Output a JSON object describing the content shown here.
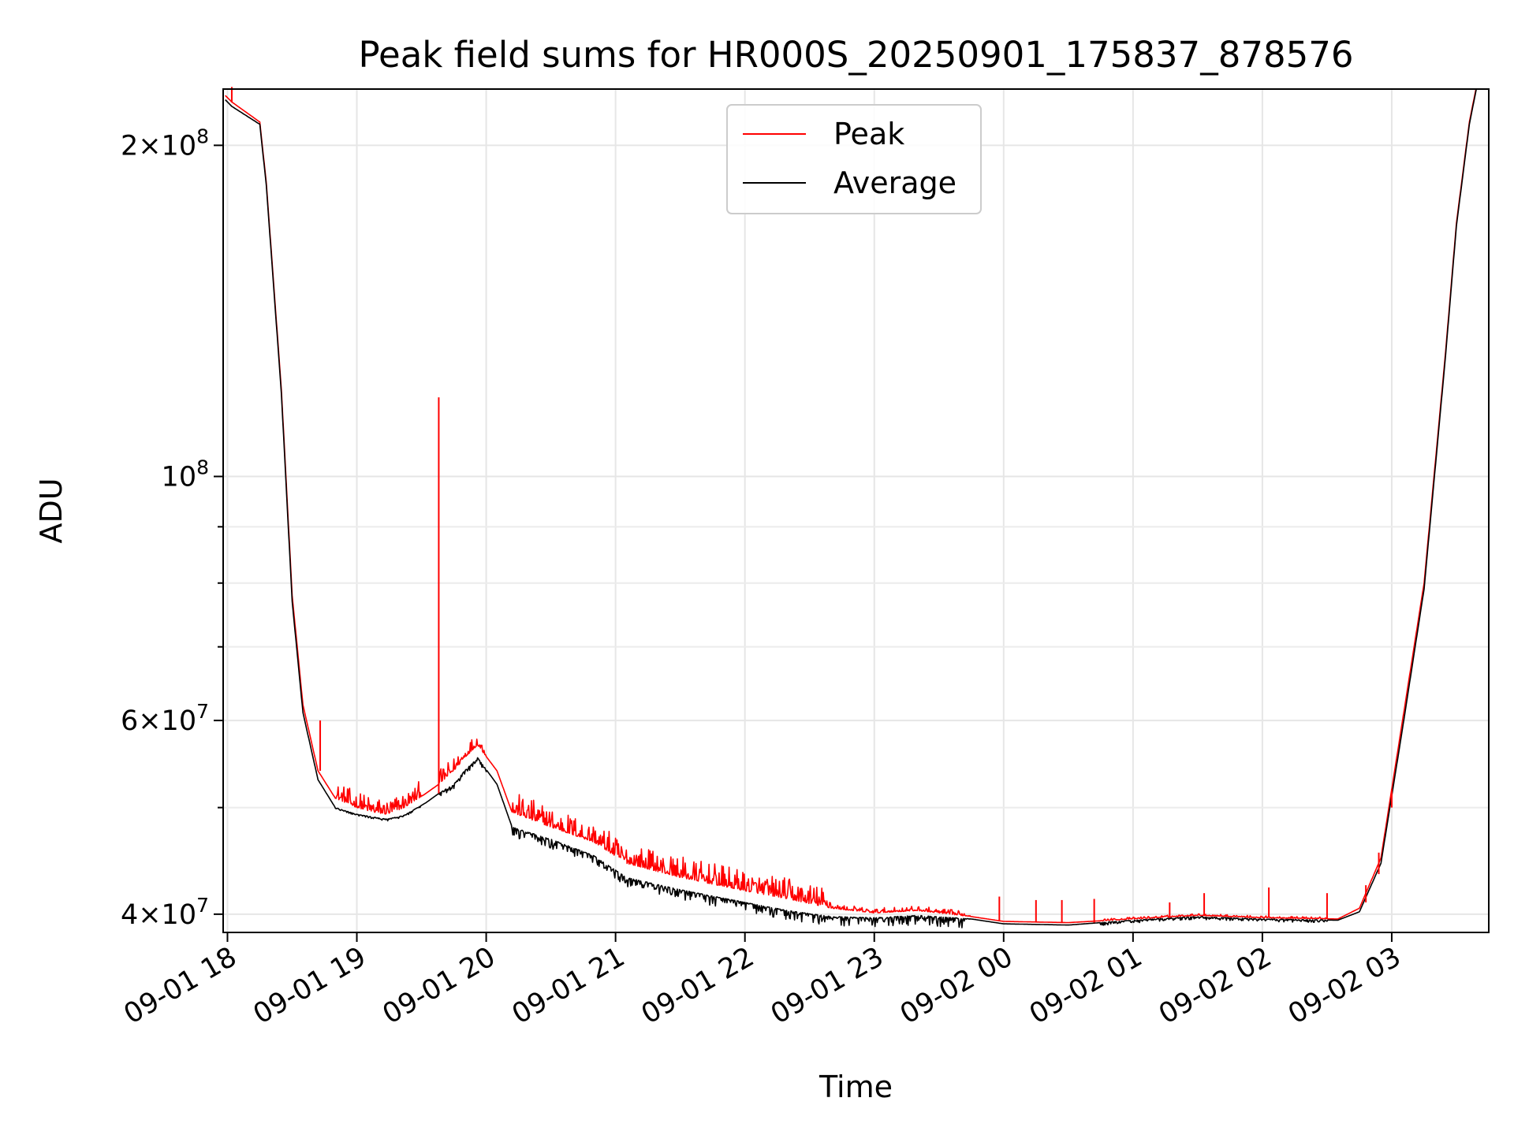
{
  "chart_data": {
    "type": "line",
    "title": "Peak field sums for HR000S_20250901_175837_878576",
    "xlabel": "Time",
    "ylabel": "ADU",
    "y_scale": "log",
    "ylim": [
      38500000,
      225000000
    ],
    "xlim": [
      "2025-09-01 17:58",
      "2025-09-02 03:45"
    ],
    "grid": true,
    "legend_position": "top-center",
    "x_tick_labels": [
      "09-01 18",
      "09-01 19",
      "09-01 20",
      "09-01 21",
      "09-01 22",
      "09-01 23",
      "09-02 00",
      "09-02 01",
      "09-02 02",
      "09-02 03"
    ],
    "x_ticks": [
      "2025-09-01 18:00",
      "2025-09-01 19:00",
      "2025-09-01 20:00",
      "2025-09-01 21:00",
      "2025-09-01 22:00",
      "2025-09-01 23:00",
      "2025-09-02 00:00",
      "2025-09-02 01:00",
      "2025-09-02 02:00",
      "2025-09-02 03:00"
    ],
    "y_major_ticks": [
      {
        "value": 40000000,
        "mantissa": "4",
        "exp": "7"
      },
      {
        "value": 60000000,
        "mantissa": "6",
        "exp": "7"
      },
      {
        "value": 100000000,
        "mantissa": "",
        "exp": "8"
      },
      {
        "value": 200000000,
        "mantissa": "2",
        "exp": "8"
      }
    ],
    "y_minor_grid": [
      50000000,
      70000000,
      80000000,
      90000000
    ],
    "colors": {
      "peak": "#ff0000",
      "average": "#000000"
    },
    "series": [
      {
        "name": "Peak",
        "color": "#ff0000",
        "x": [
          "2025-09-01 17:59",
          "2025-09-01 18:02",
          "2025-09-01 18:15",
          "2025-09-01 18:18",
          "2025-09-01 18:25",
          "2025-09-01 18:30",
          "2025-09-01 18:35",
          "2025-09-01 18:42",
          "2025-09-01 18:50",
          "2025-09-01 19:00",
          "2025-09-01 19:08",
          "2025-09-01 19:14",
          "2025-09-01 19:22",
          "2025-09-01 19:32",
          "2025-09-01 19:38",
          "2025-09-01 19:45",
          "2025-09-01 19:50",
          "2025-09-01 19:56",
          "2025-09-01 20:05",
          "2025-09-01 20:12",
          "2025-09-01 20:30",
          "2025-09-01 20:50",
          "2025-09-01 21:05",
          "2025-09-01 21:30",
          "2025-09-01 22:00",
          "2025-09-01 22:20",
          "2025-09-01 22:40",
          "2025-09-01 23:00",
          "2025-09-01 23:20",
          "2025-09-01 23:45",
          "2025-09-02 00:00",
          "2025-09-02 00:30",
          "2025-09-02 01:00",
          "2025-09-02 01:30",
          "2025-09-02 02:00",
          "2025-09-02 02:35",
          "2025-09-02 02:45",
          "2025-09-02 02:55",
          "2025-09-02 03:05",
          "2025-09-02 03:15",
          "2025-09-02 03:25",
          "2025-09-02 03:30",
          "2025-09-02 03:36",
          "2025-09-02 03:40"
        ],
        "values": [
          222000000,
          219000000,
          210000000,
          185000000,
          120000000,
          78000000,
          62000000,
          54000000,
          51000000,
          50000000,
          49500000,
          49300000,
          50000000,
          51500000,
          52500000,
          54000000,
          55500000,
          57000000,
          54000000,
          49500000,
          48000000,
          46500000,
          44500000,
          43200000,
          42000000,
          41300000,
          40500000,
          40100000,
          40300000,
          39800000,
          39400000,
          39300000,
          39600000,
          39900000,
          39700000,
          39600000,
          40500000,
          45000000,
          60000000,
          80000000,
          130000000,
          170000000,
          210000000,
          230000000
        ]
      },
      {
        "name": "Average",
        "color": "#000000",
        "x": [
          "2025-09-01 17:59",
          "2025-09-01 18:02",
          "2025-09-01 18:15",
          "2025-09-01 18:18",
          "2025-09-01 18:25",
          "2025-09-01 18:30",
          "2025-09-01 18:35",
          "2025-09-01 18:42",
          "2025-09-01 18:50",
          "2025-09-01 19:00",
          "2025-09-01 19:08",
          "2025-09-01 19:14",
          "2025-09-01 19:22",
          "2025-09-01 19:32",
          "2025-09-01 19:38",
          "2025-09-01 19:45",
          "2025-09-01 19:50",
          "2025-09-01 19:56",
          "2025-09-01 20:05",
          "2025-09-01 20:12",
          "2025-09-01 20:30",
          "2025-09-01 20:50",
          "2025-09-01 21:05",
          "2025-09-01 21:30",
          "2025-09-01 22:00",
          "2025-09-01 22:20",
          "2025-09-01 22:40",
          "2025-09-01 23:00",
          "2025-09-01 23:20",
          "2025-09-01 23:45",
          "2025-09-02 00:00",
          "2025-09-02 00:30",
          "2025-09-02 01:00",
          "2025-09-02 01:30",
          "2025-09-02 02:00",
          "2025-09-02 02:35",
          "2025-09-02 02:45",
          "2025-09-02 02:55",
          "2025-09-02 03:05",
          "2025-09-02 03:15",
          "2025-09-02 03:25",
          "2025-09-02 03:30",
          "2025-09-02 03:36",
          "2025-09-02 03:40"
        ],
        "values": [
          220000000,
          217000000,
          209000000,
          184000000,
          119000000,
          77000000,
          61000000,
          53000000,
          50000000,
          49300000,
          49000000,
          48800000,
          49200000,
          50500000,
          51500000,
          52500000,
          54000000,
          55500000,
          52500000,
          48000000,
          46800000,
          45200000,
          43200000,
          42100000,
          41000000,
          40300000,
          39800000,
          39700000,
          39900000,
          39600000,
          39200000,
          39100000,
          39500000,
          39800000,
          39600000,
          39500000,
          40200000,
          44500000,
          59000000,
          79000000,
          129000000,
          169000000,
          209000000,
          229000000
        ]
      }
    ],
    "peak_spikes": [
      {
        "x": "2025-09-01 19:38",
        "value": 118000000,
        "base": 51500000
      },
      {
        "x": "2025-09-01 18:43",
        "value": 60000000,
        "base": 54000000
      },
      {
        "x": "2025-09-01 18:02",
        "value": 226000000,
        "base": 219000000
      },
      {
        "x": "2025-09-01 23:58",
        "value": 41500000,
        "base": 39400000
      },
      {
        "x": "2025-09-02 00:15",
        "value": 41200000,
        "base": 39300000
      },
      {
        "x": "2025-09-02 00:27",
        "value": 41200000,
        "base": 39300000
      },
      {
        "x": "2025-09-02 00:42",
        "value": 41300000,
        "base": 39300000
      },
      {
        "x": "2025-09-02 01:17",
        "value": 41000000,
        "base": 39700000
      },
      {
        "x": "2025-09-02 01:33",
        "value": 41800000,
        "base": 39900000
      },
      {
        "x": "2025-09-02 02:03",
        "value": 42300000,
        "base": 39700000
      },
      {
        "x": "2025-09-02 02:30",
        "value": 41800000,
        "base": 39600000
      },
      {
        "x": "2025-09-02 02:48",
        "value": 42500000,
        "base": 41000000
      },
      {
        "x": "2025-09-02 02:54",
        "value": 45500000,
        "base": 43500000
      },
      {
        "x": "2025-09-02 03:00",
        "value": 52000000,
        "base": 50000000
      }
    ],
    "noise_ranges": [
      {
        "start": "2025-09-01 18:50",
        "end": "2025-09-01 19:30",
        "peak_amp": 0.035,
        "avg_amp": 0.004
      },
      {
        "start": "2025-09-01 19:38",
        "end": "2025-09-01 20:00",
        "peak_amp": 0.03,
        "avg_amp": 0.01
      },
      {
        "start": "2025-09-01 20:12",
        "end": "2025-09-01 22:40",
        "peak_amp": 0.045,
        "avg_amp": 0.02
      },
      {
        "start": "2025-09-01 22:40",
        "end": "2025-09-01 23:45",
        "peak_amp": 0.01,
        "avg_amp": 0.02
      },
      {
        "start": "2025-09-02 00:45",
        "end": "2025-09-02 02:30",
        "peak_amp": 0.004,
        "avg_amp": 0.006
      }
    ]
  }
}
